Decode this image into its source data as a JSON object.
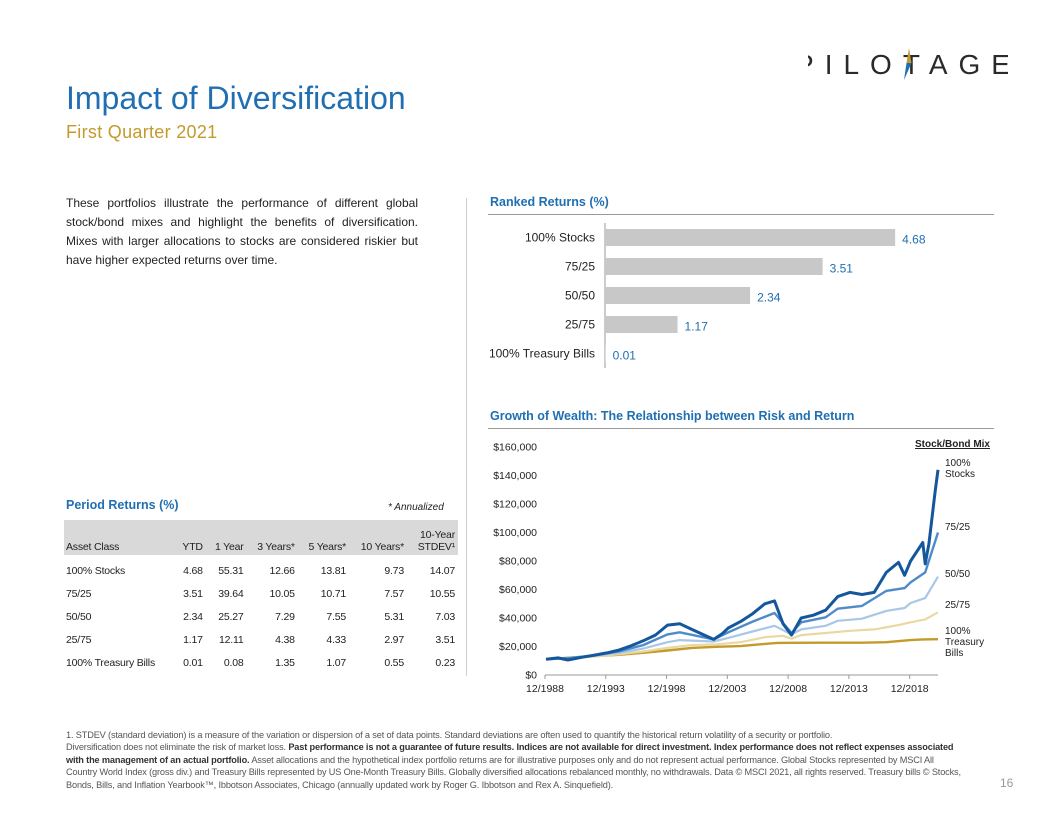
{
  "header": {
    "logo_text": "PILOTAGE",
    "title": "Impact of Diversification",
    "subtitle": "First Quarter 2021"
  },
  "intro": {
    "text": "These portfolios illustrate the performance of different global stock/bond mixes and highlight the benefits of diversification. Mixes with larger allocations to stocks are considered riskier but have higher expected returns over time."
  },
  "colors": {
    "title_blue": "#1f6fb2",
    "subtitle_gold": "#c49a2c",
    "bar_gray": "#c8c8c8",
    "stocks_100": "#15579c",
    "mix_75_25": "#4f8bc9",
    "mix_50_50": "#a9c7e6",
    "mix_25_75": "#ead8a3",
    "tbills_100": "#c49a2c"
  },
  "period_returns": {
    "title": "Period Returns (%)",
    "note": "* Annualized",
    "columns": [
      "Asset Class",
      "YTD",
      "1 Year",
      "3 Years*",
      "5 Years*",
      "10 Years*",
      [
        "10-Year",
        "STDEV¹"
      ]
    ],
    "rows": [
      [
        "100% Stocks",
        "4.68",
        "55.31",
        "12.66",
        "13.81",
        "9.73",
        "14.07"
      ],
      [
        "75/25",
        "3.51",
        "39.64",
        "10.05",
        "10.71",
        "7.57",
        "10.55"
      ],
      [
        "50/50",
        "2.34",
        "25.27",
        "7.29",
        "7.55",
        "5.31",
        "7.03"
      ],
      [
        "25/75",
        "1.17",
        "12.11",
        "4.38",
        "4.33",
        "2.97",
        "3.51"
      ],
      [
        "100% Treasury Bills",
        "0.01",
        "0.08",
        "1.35",
        "1.07",
        "0.55",
        "0.23"
      ]
    ]
  },
  "chart_data": [
    {
      "type": "bar",
      "orientation": "horizontal",
      "title": "Ranked Returns (%)",
      "categories": [
        "100% Stocks",
        "75/25",
        "50/50",
        "25/75",
        "100% Treasury Bills"
      ],
      "values": [
        4.68,
        3.51,
        2.34,
        1.17,
        0.01
      ],
      "value_labels": [
        "4.68",
        "3.51",
        "2.34",
        "1.17",
        "0.01"
      ],
      "xlim": [
        0,
        5
      ]
    },
    {
      "type": "line",
      "title": "Growth of Wealth: The Relationship between Risk and Return",
      "legend_title": "Stock/Bond Mix",
      "x_ticks": [
        "12/1988",
        "12/1993",
        "12/1998",
        "12/2003",
        "12/2008",
        "12/2013",
        "12/2018"
      ],
      "xlim": [
        1988.92,
        2021.25
      ],
      "y_ticks": [
        "$0",
        "$20,000",
        "$40,000",
        "$60,000",
        "$80,000",
        "$100,000",
        "$120,000",
        "$140,000",
        "$160,000"
      ],
      "ylim": [
        0,
        160000
      ],
      "series": [
        {
          "name": "100% Stocks",
          "label_lines": [
            "100%",
            "Stocks"
          ],
          "x": [
            1989,
            1990,
            1990.8,
            1992,
            1993,
            1994,
            1995,
            1996,
            1997,
            1998,
            1999,
            2000,
            2001,
            2002.8,
            2003.5,
            2004,
            2005,
            2006,
            2007,
            2007.8,
            2008.5,
            2009.2,
            2010,
            2011,
            2012,
            2013,
            2014,
            2015,
            2016,
            2017,
            2018,
            2018.5,
            2019,
            2020,
            2020.2,
            2020.5,
            2021,
            2021.25
          ],
          "y": [
            11000,
            12000,
            10500,
            12500,
            14000,
            15500,
            17500,
            20500,
            24000,
            28000,
            35000,
            36000,
            32000,
            25000,
            29000,
            33000,
            37500,
            43000,
            50000,
            52000,
            36000,
            28000,
            40000,
            42000,
            45500,
            55000,
            58000,
            56500,
            58000,
            72000,
            79000,
            70000,
            80000,
            93000,
            78000,
            92000,
            128000,
            144000
          ]
        },
        {
          "name": "75/25",
          "label_lines": [
            "75/25"
          ],
          "x": [
            1989,
            1991,
            1993,
            1995,
            1997,
            1999,
            2000,
            2002.8,
            2004,
            2006,
            2007.8,
            2009.2,
            2010,
            2012,
            2013,
            2015,
            2017,
            2018.5,
            2019,
            2020.2,
            2021.25
          ],
          "y": [
            11000,
            12000,
            13800,
            16500,
            21000,
            28500,
            30000,
            25000,
            30000,
            37500,
            43500,
            29500,
            37000,
            40500,
            46500,
            48500,
            59000,
            61000,
            65000,
            72000,
            100000
          ]
        },
        {
          "name": "50/50",
          "label_lines": [
            "50/50"
          ],
          "x": [
            1989,
            1991,
            1993,
            1995,
            1997,
            1999,
            2000,
            2002.8,
            2004,
            2006,
            2007.8,
            2009.2,
            2010,
            2012,
            2013,
            2015,
            2017,
            2018.5,
            2019,
            2020.2,
            2021.25
          ],
          "y": [
            11000,
            12000,
            13500,
            15500,
            18500,
            23000,
            24500,
            23500,
            26000,
            30500,
            34500,
            28500,
            32000,
            34500,
            38000,
            39500,
            45000,
            47000,
            50500,
            54000,
            69000
          ]
        },
        {
          "name": "25/75",
          "label_lines": [
            "25/75"
          ],
          "x": [
            1989,
            1991,
            1993,
            1995,
            1997,
            1999,
            2001,
            2003,
            2005,
            2007,
            2008.5,
            2009.2,
            2010,
            2012,
            2014,
            2016,
            2018,
            2019,
            2020.2,
            2021.25
          ],
          "y": [
            11000,
            11800,
            13000,
            14500,
            16500,
            19000,
            21000,
            21500,
            23000,
            26500,
            27500,
            25500,
            28000,
            29500,
            31000,
            32000,
            35000,
            37000,
            39000,
            44000
          ]
        },
        {
          "name": "100% Treasury Bills",
          "label_lines": [
            "100%",
            "Treasury",
            "Bills"
          ],
          "x": [
            1989,
            1991,
            1993,
            1995,
            1997,
            1999,
            2001,
            2003,
            2005,
            2007,
            2008,
            2009,
            2012,
            2015,
            2017,
            2019,
            2020,
            2021.25
          ],
          "y": [
            11000,
            12200,
            13200,
            14200,
            15600,
            17200,
            19000,
            19800,
            20300,
            21800,
            22500,
            22600,
            22650,
            22700,
            23000,
            24500,
            25000,
            25100
          ]
        }
      ]
    }
  ],
  "footnotes": {
    "line1": "1. STDEV (standard deviation) is a measure of the variation or dispersion of a set of data points. Standard deviations are often used to quantify the historical return volatility of a security or portfolio.",
    "line2_start": "Diversification does not eliminate the risk of market loss. ",
    "line2_bold": "Past performance is not a guarantee of future results. Indices are not available for direct investment. Index performance does not reflect expenses associated with the management of an actual portfolio.",
    "line2_end": " Asset allocations and the hypothetical index portfolio returns are for illustrative purposes only and do not represent actual performance. Global Stocks represented by MSCI All Country World Index (gross div.) and Treasury Bills represented by US One-Month Treasury Bills. Globally diversified allocations rebalanced monthly, no withdrawals. Data © MSCI 2021, all rights reserved. Treasury bills © Stocks, Bonds, Bills, and Inflation Yearbook™, Ibbotson Associates, Chicago (annually updated work by Roger G. Ibbotson and Rex A. Sinquefield)."
  },
  "page_number": "16"
}
